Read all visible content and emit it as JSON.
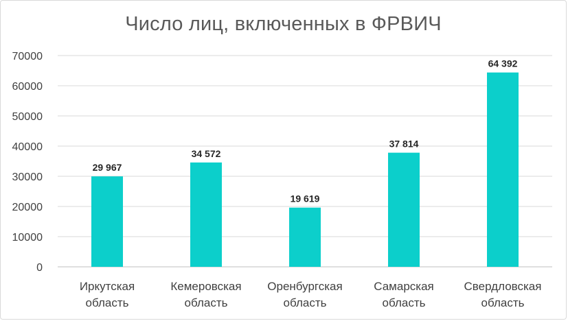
{
  "chart_data": {
    "type": "bar",
    "title": "Число лиц, включенных в ФРВИЧ",
    "categories": [
      [
        "Иркутская",
        "область"
      ],
      [
        "Кемеровская",
        "область"
      ],
      [
        "Оренбургская",
        "область"
      ],
      [
        "Самарская",
        "область"
      ],
      [
        "Свердловская",
        "область"
      ]
    ],
    "values": [
      29967,
      34572,
      19619,
      37814,
      64392
    ],
    "data_labels": [
      "29 967",
      "34 572",
      "19 619",
      "37 814",
      "64 392"
    ],
    "ylim": [
      0,
      70000
    ],
    "yticks": [
      "0",
      "10000",
      "20000",
      "30000",
      "40000",
      "50000",
      "60000",
      "70000"
    ],
    "grid": true,
    "legend": "none",
    "colors": {
      "bar": "#0ccfcb",
      "grid": "#d9d9d9",
      "axis": "#bfbfbf"
    }
  }
}
